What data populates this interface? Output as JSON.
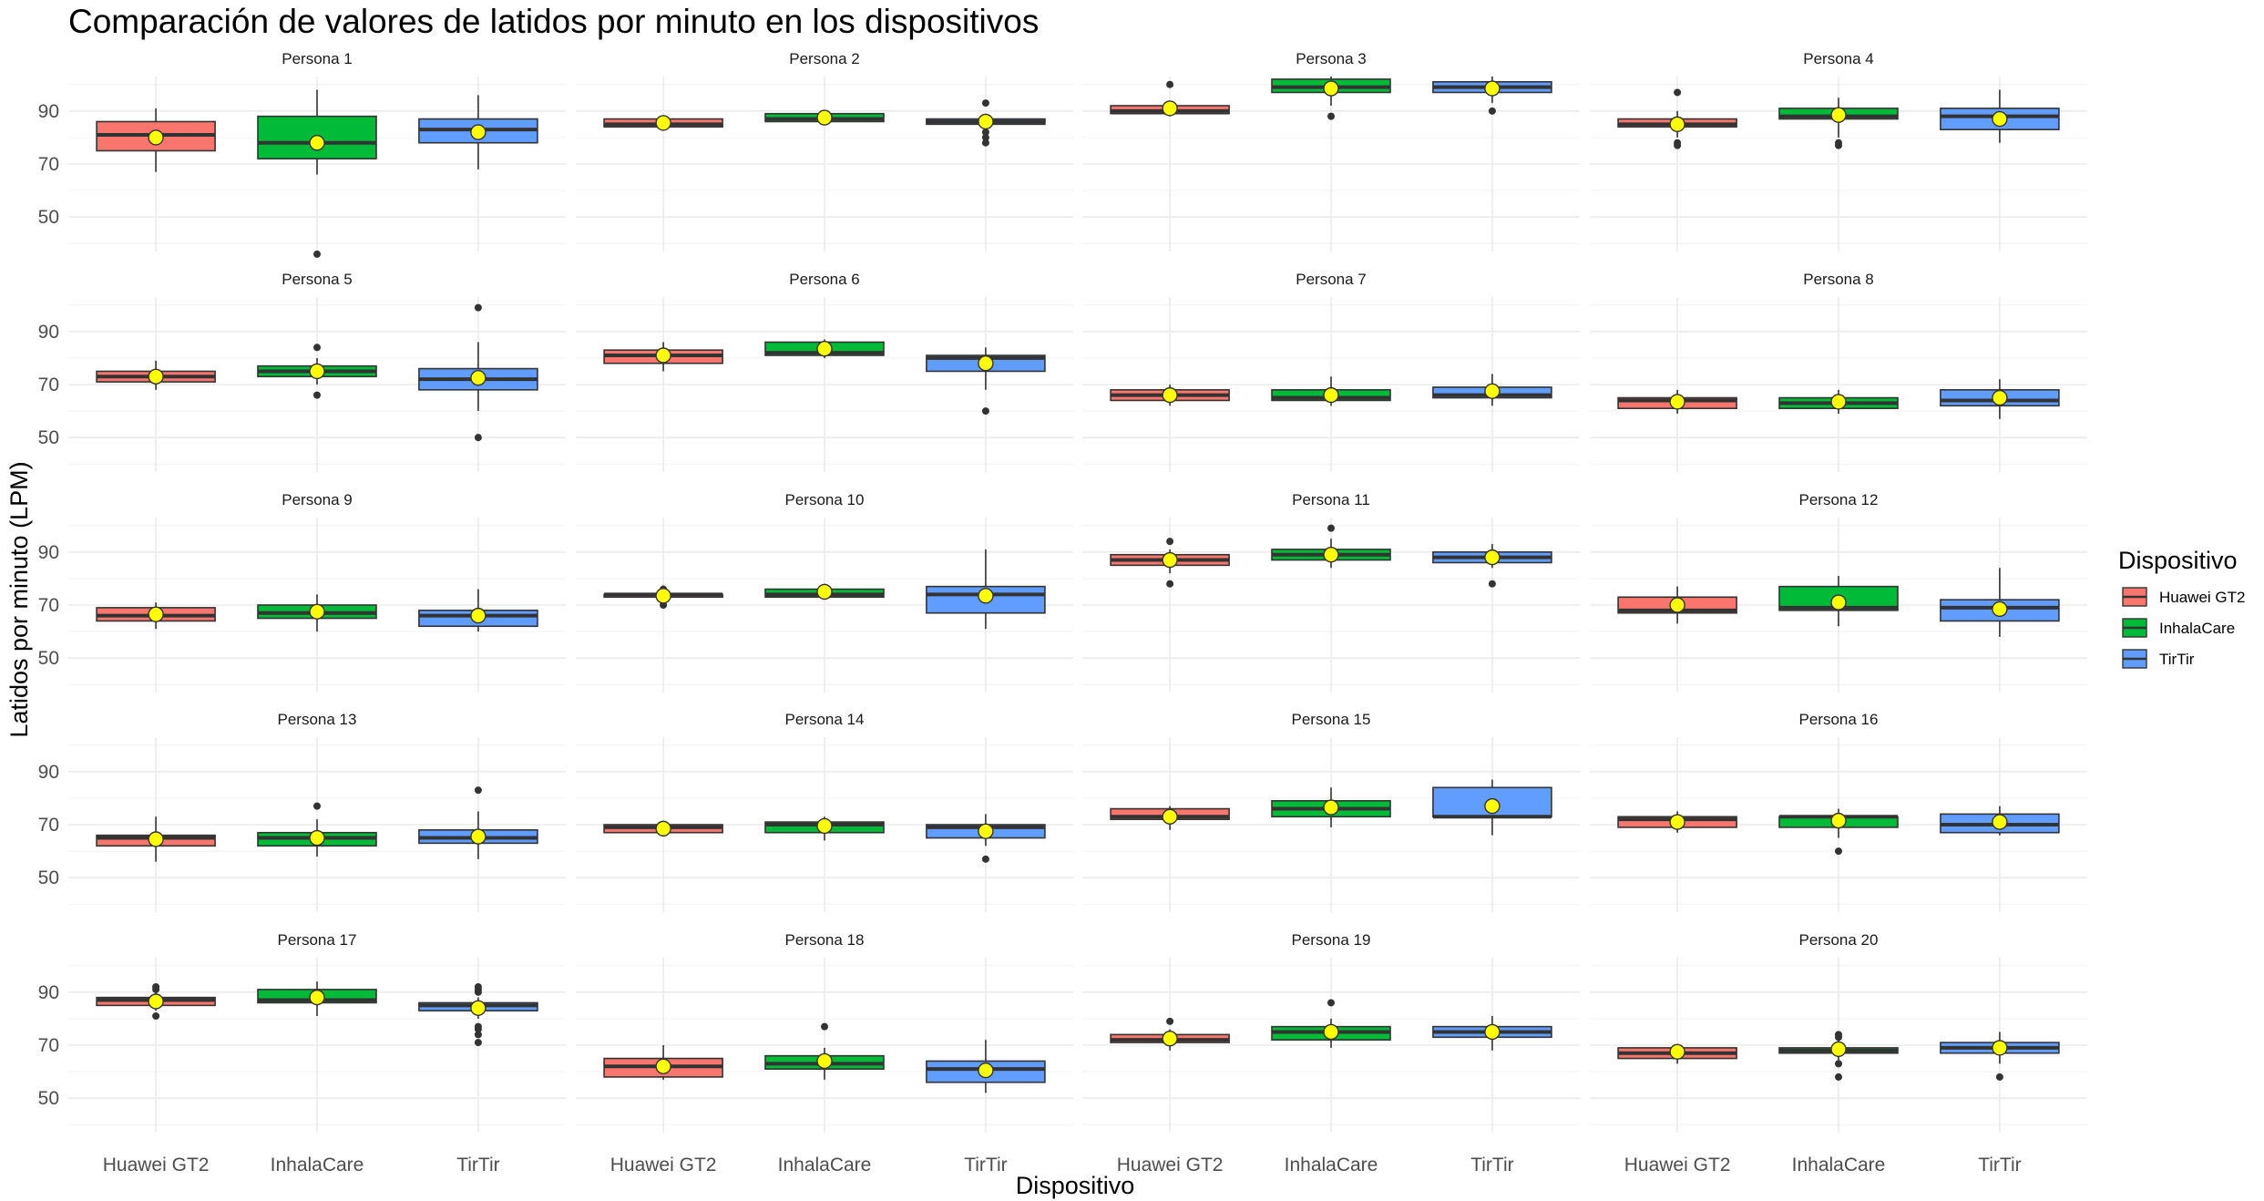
{
  "chart_data": {
    "type": "box",
    "title": "Comparación de valores de latidos por minuto en los dispositivos",
    "xlabel": "Dispositivo",
    "ylabel": "Latidos por minuto (LPM)",
    "categories": [
      "Huawei GT2",
      "InhalaCare",
      "TirTir"
    ],
    "yticks": [
      50,
      70,
      90
    ],
    "ylim": [
      37,
      103
    ],
    "grid": true,
    "legend": {
      "title": "Dispositivo",
      "position": "right",
      "entries": [
        "Huawei GT2",
        "InhalaCare",
        "TirTir"
      ]
    },
    "colors": {
      "Huawei GT2": "#F8766D",
      "InhalaCare": "#00BA38",
      "TirTir": "#619CFF",
      "mean_marker": "#FFFF00",
      "grid": "#EBEBEB"
    },
    "box_fields": [
      "whisker_low",
      "q1",
      "median",
      "q3",
      "whisker_high",
      "mean",
      "outliers"
    ],
    "panels": [
      {
        "label": "Persona 1",
        "boxes": [
          [
            67,
            75,
            81,
            86,
            91,
            80,
            []
          ],
          [
            66,
            72,
            78,
            88,
            98,
            78,
            [
              36
            ]
          ],
          [
            68,
            78,
            83,
            87,
            96,
            82,
            []
          ]
        ]
      },
      {
        "label": "Persona 2",
        "boxes": [
          [
            84,
            84,
            85,
            87,
            88,
            85.5,
            []
          ],
          [
            86,
            86,
            87,
            89,
            90,
            87.5,
            []
          ],
          [
            84,
            85,
            86,
            87,
            88,
            86,
            [
              78,
              80,
              82,
              93
            ]
          ]
        ]
      },
      {
        "label": "Persona 3",
        "boxes": [
          [
            88,
            89,
            90,
            92,
            93,
            91,
            [
              100
            ]
          ],
          [
            92,
            97,
            99,
            102,
            103,
            98.5,
            [
              88
            ]
          ],
          [
            93,
            97,
            99,
            101,
            103,
            98.5,
            [
              90
            ]
          ]
        ]
      },
      {
        "label": "Persona 4",
        "boxes": [
          [
            80,
            84,
            85,
            87,
            90,
            85,
            [
              77,
              78,
              97
            ]
          ],
          [
            80,
            87,
            88,
            91,
            95,
            88.5,
            [
              77,
              78
            ]
          ],
          [
            78,
            83,
            88,
            91,
            98,
            87,
            []
          ]
        ]
      },
      {
        "label": "Persona 5",
        "boxes": [
          [
            68,
            71,
            73,
            75,
            79,
            73,
            []
          ],
          [
            70,
            73,
            75,
            77,
            80,
            75,
            [
              66,
              84
            ]
          ],
          [
            60,
            68,
            72,
            76,
            86,
            72.5,
            [
              50,
              99
            ]
          ]
        ]
      },
      {
        "label": "Persona 6",
        "boxes": [
          [
            75,
            78,
            81,
            83,
            86,
            81,
            []
          ],
          [
            80,
            81,
            82,
            86,
            87,
            83.5,
            []
          ],
          [
            68,
            75,
            80,
            81,
            84,
            78,
            [
              60
            ]
          ]
        ]
      },
      {
        "label": "Persona 7",
        "boxes": [
          [
            62,
            64,
            66,
            68,
            70,
            66,
            []
          ],
          [
            62,
            64,
            65,
            68,
            73,
            66,
            []
          ],
          [
            62,
            65,
            66,
            69,
            74,
            67.5,
            []
          ]
        ]
      },
      {
        "label": "Persona 8",
        "boxes": [
          [
            59,
            61,
            64,
            65,
            68,
            63.5,
            []
          ],
          [
            59,
            61,
            63,
            65,
            68,
            63.5,
            []
          ],
          [
            57,
            62,
            64,
            68,
            72,
            65,
            []
          ]
        ]
      },
      {
        "label": "Persona 9",
        "boxes": [
          [
            61,
            64,
            66,
            69,
            71,
            66.5,
            []
          ],
          [
            60,
            65,
            67,
            70,
            74,
            67.5,
            []
          ],
          [
            60,
            62,
            66,
            68,
            76,
            66,
            []
          ]
        ]
      },
      {
        "label": "Persona 10",
        "boxes": [
          [
            71,
            73,
            74,
            74,
            75,
            73.5,
            [
              70,
              76
            ]
          ],
          [
            72,
            73,
            74,
            76,
            78,
            75,
            []
          ],
          [
            61,
            67,
            74,
            77,
            91,
            73.5,
            []
          ]
        ]
      },
      {
        "label": "Persona 11",
        "boxes": [
          [
            82,
            85,
            87,
            89,
            91,
            87,
            [
              78,
              94
            ]
          ],
          [
            84,
            87,
            89,
            91,
            95,
            89,
            [
              99
            ]
          ],
          [
            84,
            86,
            88,
            90,
            93,
            88,
            [
              78
            ]
          ]
        ]
      },
      {
        "label": "Persona 12",
        "boxes": [
          [
            63,
            67,
            68,
            73,
            77,
            70,
            []
          ],
          [
            62,
            68,
            69,
            77,
            81,
            71,
            []
          ],
          [
            58,
            64,
            69,
            72,
            84,
            68.5,
            []
          ]
        ]
      },
      {
        "label": "Persona 13",
        "boxes": [
          [
            56,
            62,
            65,
            66,
            73,
            64.5,
            []
          ],
          [
            58,
            62,
            65,
            67,
            72,
            65,
            [
              77
            ]
          ],
          [
            57,
            63,
            65,
            68,
            75,
            65.5,
            [
              83
            ]
          ]
        ]
      },
      {
        "label": "Persona 14",
        "boxes": [
          [
            66,
            67,
            69,
            70,
            71,
            68.5,
            []
          ],
          [
            64,
            67,
            70,
            71,
            73,
            69.5,
            []
          ],
          [
            62,
            65,
            69,
            70,
            74,
            67.5,
            [
              57
            ]
          ]
        ]
      },
      {
        "label": "Persona 15",
        "boxes": [
          [
            68,
            72,
            73,
            76,
            77,
            73,
            []
          ],
          [
            69,
            73,
            76,
            79,
            84,
            76.5,
            []
          ],
          [
            66,
            73,
            73,
            84,
            87,
            77,
            []
          ]
        ]
      },
      {
        "label": "Persona 16",
        "boxes": [
          [
            67,
            69,
            72,
            73,
            75,
            71,
            []
          ],
          [
            65,
            69,
            73,
            73,
            76,
            71.5,
            [
              60
            ]
          ],
          [
            66,
            67,
            70,
            74,
            77,
            71,
            []
          ]
        ]
      },
      {
        "label": "Persona 17",
        "boxes": [
          [
            83,
            85,
            87,
            88,
            90,
            86.5,
            [
              81,
              91,
              92
            ]
          ],
          [
            81,
            86,
            87,
            91,
            94,
            88,
            []
          ],
          [
            80,
            83,
            85,
            86,
            88,
            84,
            [
              71,
              74,
              76,
              77,
              90,
              91,
              92
            ]
          ]
        ]
      },
      {
        "label": "Persona 18",
        "boxes": [
          [
            57,
            58,
            62,
            65,
            70,
            62,
            []
          ],
          [
            57,
            61,
            63,
            66,
            69,
            64,
            [
              77
            ]
          ],
          [
            52,
            56,
            61,
            64,
            72,
            60.5,
            []
          ]
        ]
      },
      {
        "label": "Persona 19",
        "boxes": [
          [
            68,
            71,
            72,
            74,
            76,
            72.5,
            [
              79
            ]
          ],
          [
            69,
            72,
            75,
            77,
            80,
            75,
            [
              86
            ]
          ],
          [
            68,
            73,
            75,
            77,
            81,
            75,
            []
          ]
        ]
      },
      {
        "label": "Persona 20",
        "boxes": [
          [
            63,
            65,
            67,
            69,
            70,
            67.5,
            []
          ],
          [
            62,
            67,
            68,
            69,
            72,
            68.5,
            [
              58,
              63,
              73,
              74
            ]
          ],
          [
            63,
            67,
            69,
            71,
            75,
            69,
            [
              58
            ]
          ]
        ]
      }
    ]
  }
}
